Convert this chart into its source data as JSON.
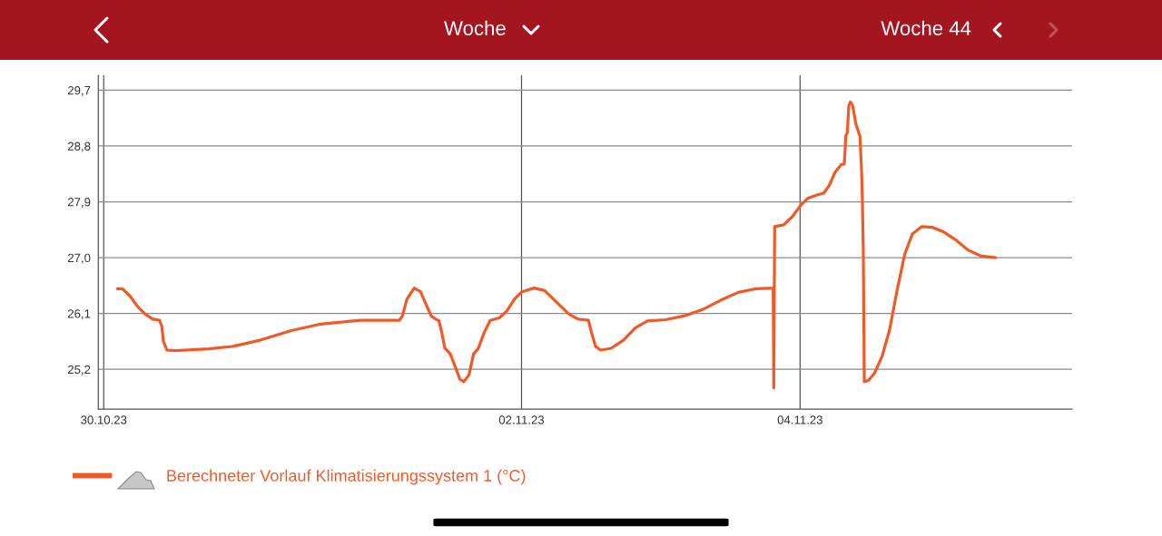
{
  "chart_data": {
    "type": "line",
    "title": "Woche",
    "subtitle": "Woche 44",
    "xlim": [
      "2023-10-29T23:04",
      "2023-11-05T22:53"
    ],
    "xticks": [
      {
        "value": "2023-10-30",
        "label": "30.10.23"
      },
      {
        "value": "2023-11-02",
        "label": "02.11.23"
      },
      {
        "value": "2023-11-04",
        "label": "04.11.23"
      }
    ],
    "ylim": [
      24.56,
      29.94
    ],
    "yticks": [
      {
        "value": 25.2,
        "label": "25,2"
      },
      {
        "value": 26.1,
        "label": "26,1"
      },
      {
        "value": 27.0,
        "label": "27,0"
      },
      {
        "value": 27.9,
        "label": "27,9"
      },
      {
        "value": 28.8,
        "label": "28,8"
      },
      {
        "value": 29.7,
        "label": "29,7"
      }
    ],
    "grid": true,
    "legend": "bottom",
    "marker": "none",
    "line_style": "solid",
    "series": [
      {
        "name": "Berechneter Vorlauf Klimatisierungssystem 1 (°C)",
        "color": "#f05a28",
        "x": [
          "2023-10-30T02:21",
          "2023-10-30T03:14",
          "2023-10-30T04:32",
          "2023-10-30T05:51",
          "2023-10-30T07:09",
          "2023-10-30T08:27",
          "2023-10-30T09:37",
          "2023-10-30T10:01",
          "2023-10-30T10:17",
          "2023-10-30T10:54",
          "2023-10-30T12:22",
          "2023-10-30T18:06",
          "2023-10-30T22:17",
          "2023-10-31T02:58",
          "2023-10-31T08:11",
          "2023-10-31T13:23",
          "2023-10-31T20:11",
          "2023-11-01T02:58",
          "2023-11-01T03:28",
          "2023-11-01T04:15",
          "2023-11-01T05:30",
          "2023-11-01T06:36",
          "2023-11-01T07:23",
          "2023-11-01T08:26",
          "2023-11-01T09:22",
          "2023-11-01T09:44",
          "2023-11-01T10:16",
          "2023-11-01T10:47",
          "2023-11-01T11:43",
          "2023-11-01T12:37",
          "2023-11-01T13:23",
          "2023-11-01T14:04",
          "2023-11-01T14:57",
          "2023-11-01T15:44",
          "2023-11-01T16:31",
          "2023-11-01T17:33",
          "2023-11-01T18:36",
          "2023-11-01T20:10",
          "2023-11-01T21:28",
          "2023-11-01T22:47",
          "2023-11-02T00:05",
          "2023-11-02T02:10",
          "2023-11-02T03:59",
          "2023-11-02T06:04",
          "2023-11-02T08:10",
          "2023-11-02T09:44",
          "2023-11-02T11:32",
          "2023-11-02T12:04",
          "2023-11-02T12:45",
          "2023-11-02T13:38",
          "2023-11-02T15:27",
          "2023-11-02T17:33",
          "2023-11-02T19:38",
          "2023-11-02T21:43",
          "2023-11-03T00:50",
          "2023-11-03T03:58",
          "2023-11-03T07:06",
          "2023-11-03T10:14",
          "2023-11-03T13:21",
          "2023-11-03T16:29",
          "2023-11-03T19:22",
          "2023-11-03T19:28",
          "2023-11-03T19:37",
          "2023-11-03T21:11",
          "2023-11-03T22:45",
          "2023-11-04T00:04",
          "2023-11-04T01:22",
          "2023-11-04T02:55",
          "2023-11-04T04:04",
          "2023-11-04T05:00",
          "2023-11-04T06:03",
          "2023-11-04T07:06",
          "2023-11-04T07:37",
          "2023-11-04T07:53",
          "2023-11-04T08:08",
          "2023-11-04T08:24",
          "2023-11-04T08:40",
          "2023-11-04T09:04",
          "2023-11-04T09:36",
          "2023-11-04T10:07",
          "2023-11-04T10:19",
          "2023-11-04T10:35",
          "2023-11-04T10:45",
          "2023-11-04T10:54",
          "2023-11-04T11:04",
          "2023-11-04T11:47",
          "2023-11-04T12:50",
          "2023-11-04T14:08",
          "2023-11-04T15:26",
          "2023-11-04T16:44",
          "2023-11-04T18:03",
          "2023-11-04T19:21",
          "2023-11-04T20:55",
          "2023-11-04T22:45",
          "2023-11-05T00:50",
          "2023-11-05T02:55",
          "2023-11-05T05:00",
          "2023-11-05T07:05",
          "2023-11-05T09:42"
        ],
        "values": [
          26.5,
          26.5,
          26.38,
          26.21,
          26.09,
          26.01,
          25.99,
          25.89,
          25.65,
          25.51,
          25.5,
          25.53,
          25.57,
          25.67,
          25.82,
          25.93,
          25.99,
          25.99,
          26.06,
          26.33,
          26.51,
          26.45,
          26.28,
          26.06,
          26.0,
          25.99,
          25.79,
          25.54,
          25.45,
          25.23,
          25.04,
          25.0,
          25.11,
          25.45,
          25.53,
          25.79,
          25.99,
          26.03,
          26.14,
          26.33,
          26.45,
          26.51,
          26.47,
          26.28,
          26.09,
          26.01,
          25.99,
          25.79,
          25.57,
          25.51,
          25.54,
          25.67,
          25.87,
          25.98,
          26.0,
          26.06,
          26.16,
          26.31,
          26.44,
          26.5,
          26.51,
          24.9,
          27.5,
          27.53,
          27.67,
          27.84,
          27.96,
          28.01,
          28.04,
          28.16,
          28.38,
          28.5,
          28.51,
          28.96,
          29.01,
          29.45,
          29.51,
          29.45,
          29.16,
          29.01,
          28.96,
          28.43,
          27.89,
          27.06,
          25.0,
          25.02,
          25.14,
          25.41,
          25.84,
          26.48,
          27.06,
          27.38,
          27.5,
          27.49,
          27.41,
          27.28,
          27.12,
          27.03,
          27.0
        ]
      }
    ]
  }
}
